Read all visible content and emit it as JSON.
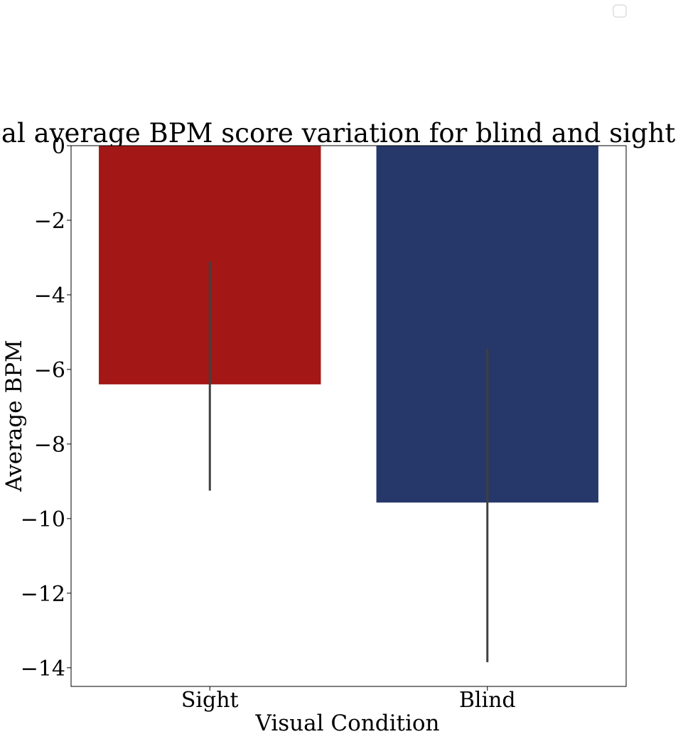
{
  "chart_data": {
    "type": "bar",
    "title": "Global average BPM score variation for blind and sight users",
    "xlabel": "Visual Condition",
    "ylabel": "Average BPM",
    "categories": [
      "Sight",
      "Blind"
    ],
    "values": [
      -6.4,
      -9.57
    ],
    "error_bars": [
      {
        "low": -9.25,
        "high": -3.1
      },
      {
        "low": -13.85,
        "high": -5.45
      }
    ],
    "colors": [
      "#a31717",
      "#26376a"
    ],
    "errorbar_color": "#404040",
    "ylim": [
      -14.5,
      0
    ],
    "yticks": [
      0,
      -2,
      -4,
      -6,
      -8,
      -10,
      -12,
      -14
    ],
    "ytick_labels": [
      "0",
      "−2",
      "−4",
      "−6",
      "−8",
      "−10",
      "−12",
      "−14"
    ],
    "grid": false,
    "legend": {
      "position": "top-right",
      "entries": []
    }
  }
}
